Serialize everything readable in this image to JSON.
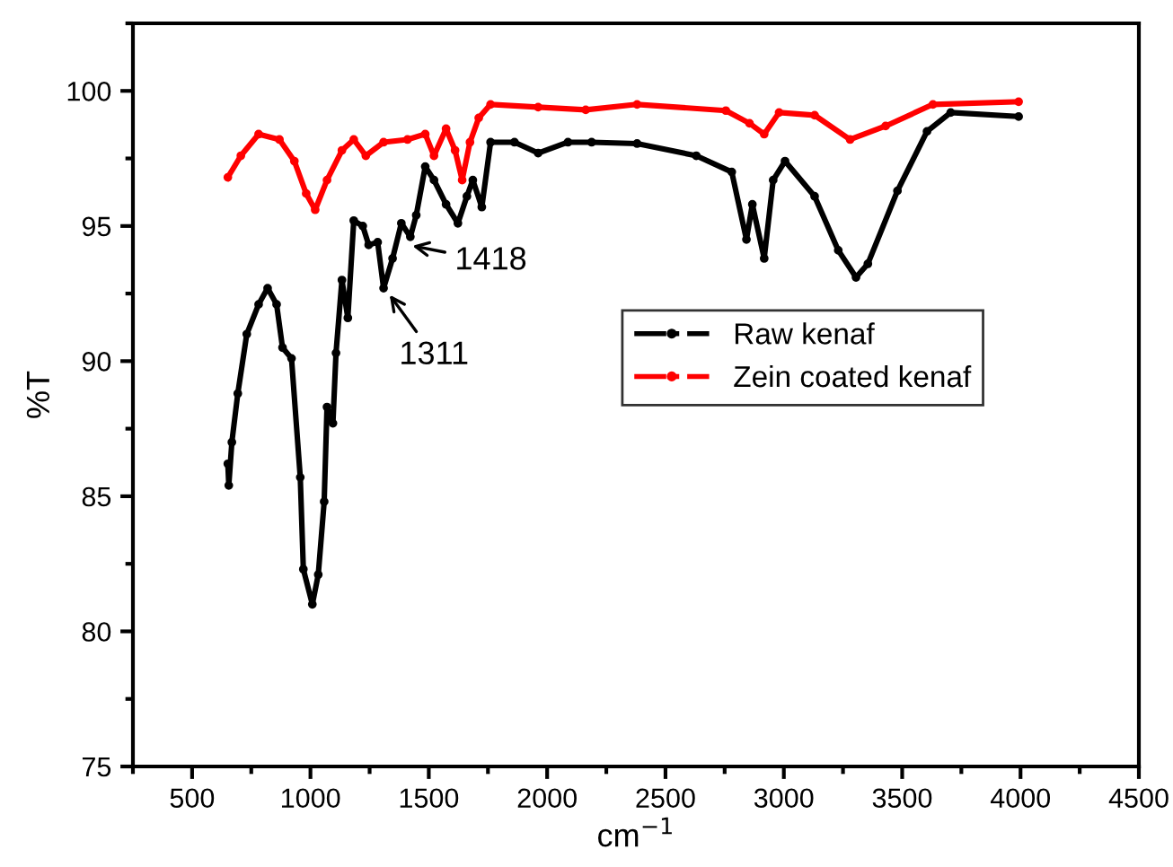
{
  "chart_data": {
    "type": "line",
    "xlabel": "cm$^{−1}$",
    "ylabel": "%T",
    "xlim": [
      250,
      4500
    ],
    "ylim": [
      75,
      102.5
    ],
    "xticks": [
      500,
      1000,
      1500,
      2000,
      2500,
      3000,
      3500,
      4000,
      4500
    ],
    "yticks": [
      75,
      80,
      85,
      90,
      95,
      100
    ],
    "marker": "circle",
    "line_style": "solid",
    "grid": false,
    "legend": "center right",
    "series": [
      {
        "name": "Raw kenaf",
        "color": "#000000",
        "x": [
          651,
          655,
          668,
          693,
          731,
          781,
          819,
          857,
          882,
          920,
          957,
          970,
          1008,
          1033,
          1058,
          1070,
          1095,
          1108,
          1133,
          1158,
          1183,
          1221,
          1246,
          1284,
          1309,
          1347,
          1384,
          1422,
          1447,
          1485,
          1522,
          1573,
          1623,
          1661,
          1686,
          1724,
          1761,
          1862,
          1962,
          2088,
          2188,
          2380,
          2630,
          2780,
          2842,
          2867,
          2917,
          2955,
          3005,
          3130,
          3230,
          3305,
          3355,
          3480,
          3605,
          3705,
          3992
        ],
        "values": [
          86.2,
          85.4,
          87,
          88.8,
          91,
          92.1,
          92.7,
          92.1,
          90.5,
          90.1,
          85.7,
          82.3,
          81.0,
          82.1,
          84.8,
          88.3,
          87.7,
          90.3,
          93,
          91.6,
          95.2,
          95,
          94.3,
          94.4,
          92.7,
          93.8,
          95.1,
          94.6,
          95.4,
          97.2,
          96.7,
          95.8,
          95.1,
          96.1,
          96.7,
          95.7,
          98.1,
          98.1,
          97.7,
          98.1,
          98.1,
          98.05,
          97.6,
          97.0,
          94.5,
          95.8,
          93.8,
          96.7,
          97.4,
          96.1,
          94.1,
          93.1,
          93.6,
          96.3,
          98.5,
          99.2,
          99.05
        ]
      },
      {
        "name": "Zein coated kenaf",
        "color": "#ff0000",
        "x": [
          651,
          706,
          781,
          869,
          932,
          982,
          1020,
          1070,
          1133,
          1183,
          1234,
          1309,
          1410,
          1485,
          1522,
          1573,
          1611,
          1641,
          1674,
          1711,
          1761,
          1962,
          2163,
          2380,
          2755,
          2855,
          2917,
          2980,
          3130,
          3280,
          3430,
          3630,
          3992
        ],
        "values": [
          96.8,
          97.6,
          98.4,
          98.2,
          97.4,
          96.2,
          95.6,
          96.7,
          97.8,
          98.2,
          97.6,
          98.1,
          98.2,
          98.4,
          97.6,
          98.6,
          97.8,
          96.7,
          98.1,
          99.0,
          99.5,
          99.4,
          99.3,
          99.5,
          99.27,
          98.8,
          98.4,
          99.2,
          99.1,
          98.2,
          98.7,
          99.5,
          99.6
        ]
      }
    ],
    "annotations": [
      {
        "text": "1418",
        "x": 1410,
        "y": 94.3
      },
      {
        "text": "1311",
        "x": 1322,
        "y": 92.6
      }
    ]
  }
}
